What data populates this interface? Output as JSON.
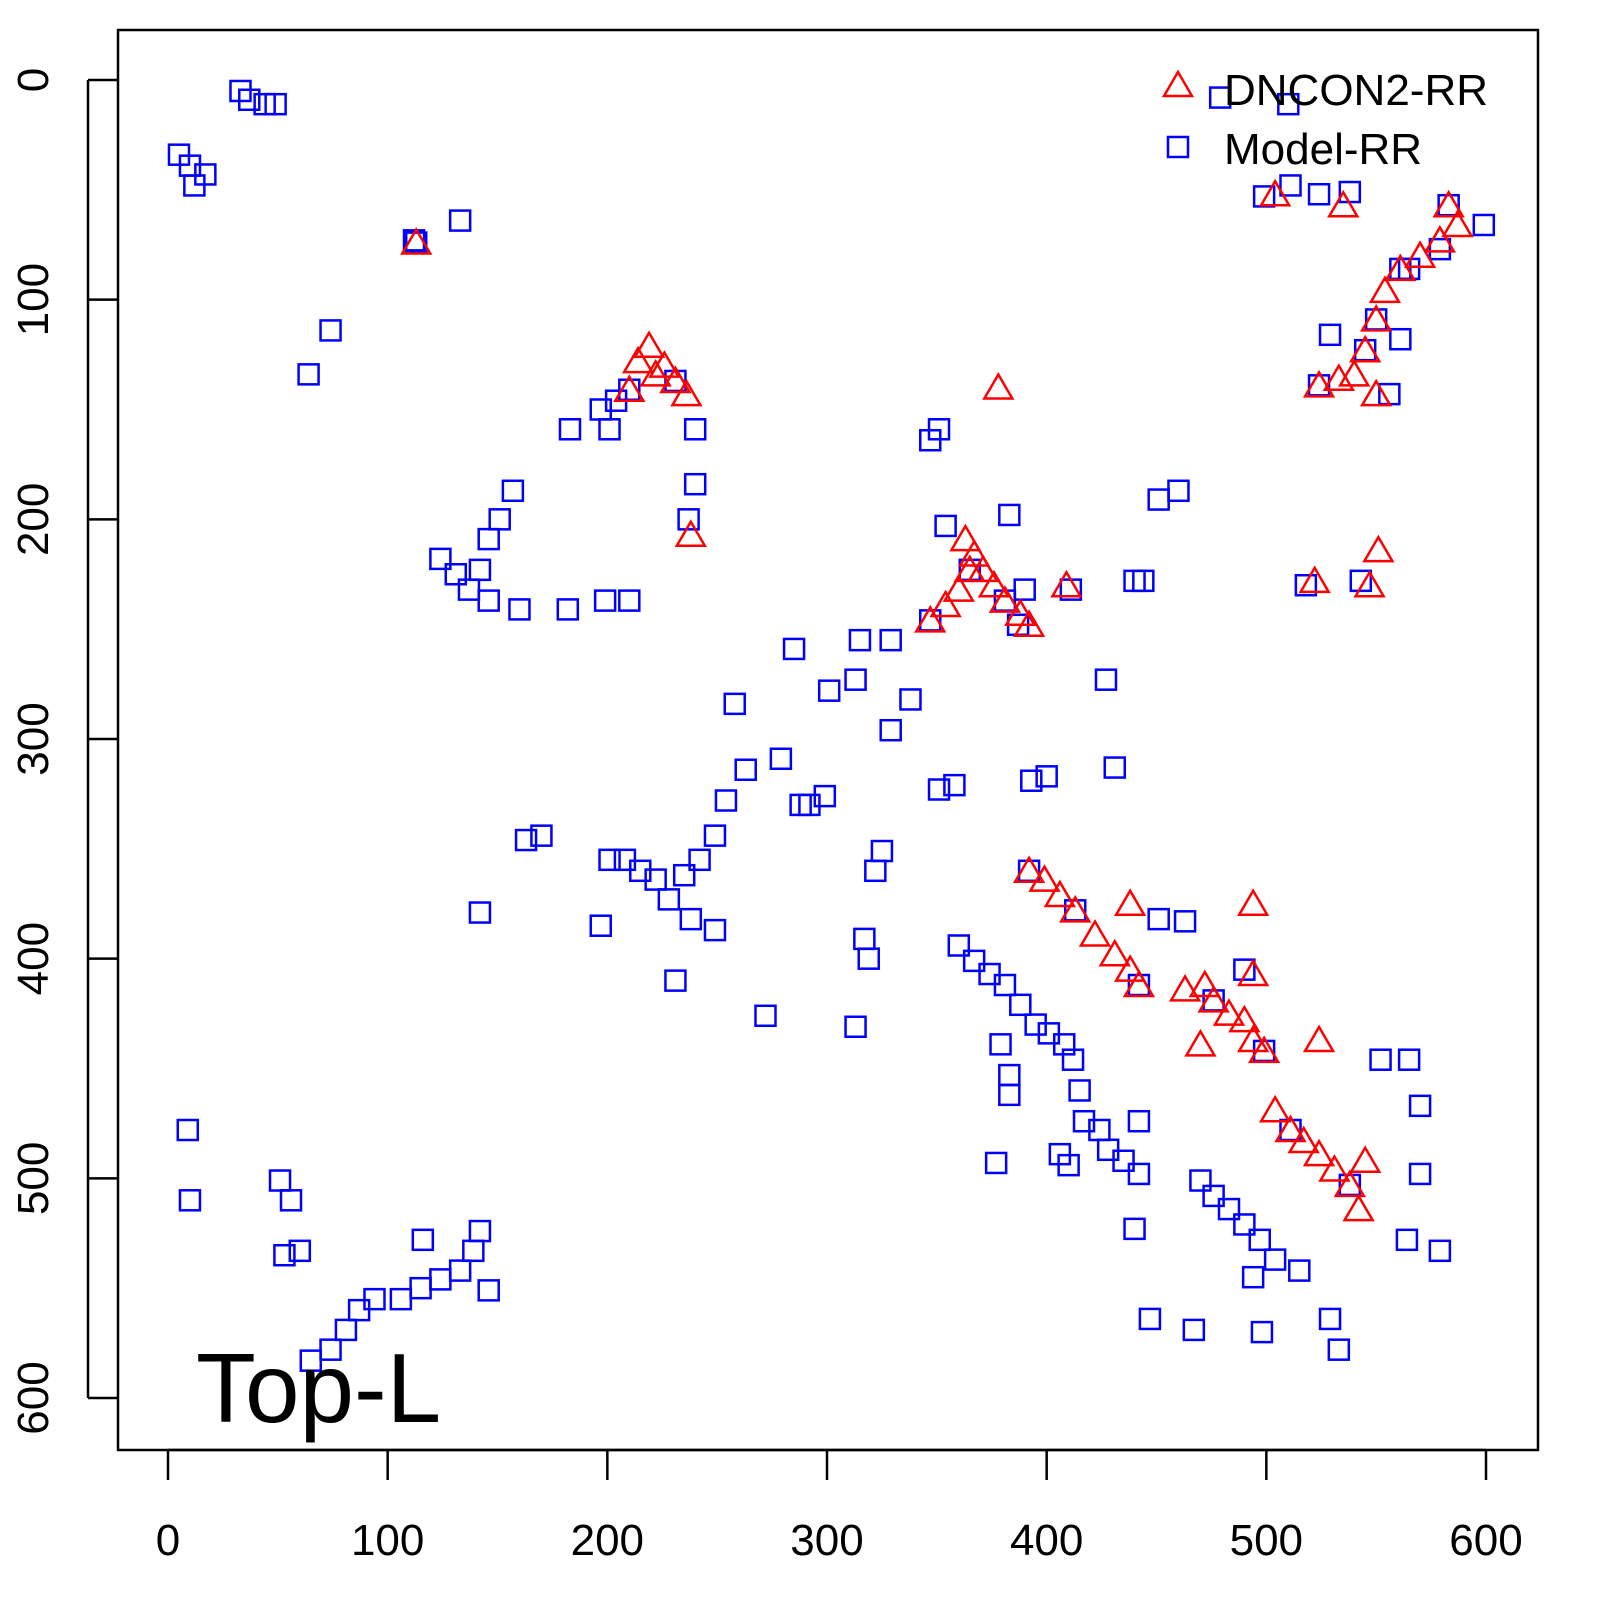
{
  "chart_data": {
    "type": "scatter",
    "title": "",
    "xlabel": "",
    "ylabel": "",
    "xlim": [
      -23,
      623
    ],
    "ylim": [
      -23,
      623
    ],
    "y_reversed": true,
    "grid": false,
    "x_ticks": [
      0,
      100,
      200,
      300,
      400,
      500,
      600
    ],
    "y_ticks": [
      0,
      100,
      200,
      300,
      400,
      500,
      600
    ],
    "annotation": "Top-L",
    "legend": {
      "placement": "top-right",
      "entries": [
        "DNCON2-RR",
        "Model-RR"
      ]
    },
    "series": [
      {
        "name": "DNCON2-RR",
        "marker": "triangle",
        "color": "#ff0000",
        "points": [
          [
            113,
            74
          ],
          [
            210,
            141
          ],
          [
            214,
            128
          ],
          [
            219,
            121
          ],
          [
            226,
            130
          ],
          [
            231,
            137
          ],
          [
            236,
            143
          ],
          [
            222,
            134
          ],
          [
            238,
            207
          ],
          [
            347,
            246
          ],
          [
            354,
            239
          ],
          [
            360,
            232
          ],
          [
            365,
            223
          ],
          [
            363,
            209
          ],
          [
            367,
            216
          ],
          [
            371,
            223
          ],
          [
            376,
            230
          ],
          [
            381,
            237
          ],
          [
            388,
            243
          ],
          [
            392,
            248
          ],
          [
            378,
            140
          ],
          [
            409,
            230
          ],
          [
            392,
            360
          ],
          [
            399,
            364
          ],
          [
            406,
            371
          ],
          [
            413,
            378
          ],
          [
            422,
            389
          ],
          [
            431,
            398
          ],
          [
            438,
            405
          ],
          [
            442,
            412
          ],
          [
            438,
            375
          ],
          [
            463,
            414
          ],
          [
            472,
            412
          ],
          [
            476,
            419
          ],
          [
            483,
            425
          ],
          [
            490,
            428
          ],
          [
            494,
            437
          ],
          [
            499,
            442
          ],
          [
            470,
            439
          ],
          [
            494,
            375
          ],
          [
            494,
            407
          ],
          [
            524,
            437
          ],
          [
            504,
            469
          ],
          [
            511,
            478
          ],
          [
            517,
            483
          ],
          [
            524,
            489
          ],
          [
            531,
            496
          ],
          [
            538,
            503
          ],
          [
            542,
            514
          ],
          [
            545,
            492
          ],
          [
            504,
            52
          ],
          [
            535,
            57
          ],
          [
            583,
            57
          ],
          [
            587,
            66
          ],
          [
            579,
            73
          ],
          [
            570,
            80
          ],
          [
            561,
            86
          ],
          [
            554,
            96
          ],
          [
            550,
            109
          ],
          [
            545,
            123
          ],
          [
            540,
            134
          ],
          [
            533,
            136
          ],
          [
            550,
            143
          ],
          [
            524,
            139
          ],
          [
            551,
            214
          ],
          [
            522,
            228
          ],
          [
            547,
            230
          ]
        ]
      },
      {
        "name": "Model-RR",
        "marker": "square",
        "color": "#0000ff",
        "points": [
          [
            33,
            5
          ],
          [
            37,
            9
          ],
          [
            44,
            11
          ],
          [
            49,
            11
          ],
          [
            5,
            34
          ],
          [
            10,
            39
          ],
          [
            12,
            48
          ],
          [
            17,
            43
          ],
          [
            112,
            73
          ],
          [
            133,
            64
          ],
          [
            74,
            114
          ],
          [
            64,
            134
          ],
          [
            9,
            478
          ],
          [
            10,
            510
          ],
          [
            51,
            501
          ],
          [
            56,
            510
          ],
          [
            53,
            535
          ],
          [
            60,
            533
          ],
          [
            65,
            583
          ],
          [
            74,
            578
          ],
          [
            81,
            569
          ],
          [
            87,
            560
          ],
          [
            94,
            555
          ],
          [
            106,
            555
          ],
          [
            115,
            550
          ],
          [
            124,
            546
          ],
          [
            133,
            542
          ],
          [
            139,
            533
          ],
          [
            142,
            524
          ],
          [
            146,
            551
          ],
          [
            116,
            528
          ],
          [
            183,
            159
          ],
          [
            197,
            150
          ],
          [
            201,
            159
          ],
          [
            204,
            146
          ],
          [
            240,
            159
          ],
          [
            240,
            184
          ],
          [
            237,
            200
          ],
          [
            124,
            218
          ],
          [
            131,
            225
          ],
          [
            137,
            232
          ],
          [
            142,
            223
          ],
          [
            146,
            237
          ],
          [
            146,
            209
          ],
          [
            151,
            200
          ],
          [
            157,
            187
          ],
          [
            160,
            241
          ],
          [
            182,
            241
          ],
          [
            199,
            237
          ],
          [
            210,
            237
          ],
          [
            285,
            259
          ],
          [
            258,
            284
          ],
          [
            301,
            278
          ],
          [
            313,
            273
          ],
          [
            315,
            255
          ],
          [
            329,
            255
          ],
          [
            338,
            282
          ],
          [
            329,
            296
          ],
          [
            279,
            309
          ],
          [
            263,
            314
          ],
          [
            254,
            328
          ],
          [
            249,
            344
          ],
          [
            242,
            355
          ],
          [
            235,
            362
          ],
          [
            228,
            373
          ],
          [
            222,
            364
          ],
          [
            215,
            360
          ],
          [
            208,
            355
          ],
          [
            201,
            355
          ],
          [
            197,
            385
          ],
          [
            238,
            382
          ],
          [
            249,
            387
          ],
          [
            231,
            410
          ],
          [
            288,
            330
          ],
          [
            299,
            326
          ],
          [
            292,
            330
          ],
          [
            163,
            346
          ],
          [
            170,
            344
          ],
          [
            142,
            379
          ],
          [
            347,
            164
          ],
          [
            351,
            159
          ],
          [
            460,
            187
          ],
          [
            451,
            191
          ],
          [
            383,
            198
          ],
          [
            354,
            203
          ],
          [
            325,
            351
          ],
          [
            322,
            360
          ],
          [
            317,
            391
          ],
          [
            319,
            400
          ],
          [
            313,
            431
          ],
          [
            272,
            426
          ],
          [
            351,
            323
          ],
          [
            358,
            321
          ],
          [
            393,
            319
          ],
          [
            400,
            317
          ],
          [
            427,
            273
          ],
          [
            431,
            313
          ],
          [
            360,
            394
          ],
          [
            367,
            401
          ],
          [
            374,
            407
          ],
          [
            381,
            412
          ],
          [
            388,
            421
          ],
          [
            395,
            430
          ],
          [
            401,
            434
          ],
          [
            408,
            439
          ],
          [
            412,
            446
          ],
          [
            415,
            460
          ],
          [
            417,
            474
          ],
          [
            424,
            478
          ],
          [
            428,
            487
          ],
          [
            435,
            492
          ],
          [
            442,
            498
          ],
          [
            442,
            474
          ],
          [
            440,
            523
          ],
          [
            379,
            439
          ],
          [
            383,
            453
          ],
          [
            383,
            462
          ],
          [
            377,
            493
          ],
          [
            406,
            489
          ],
          [
            410,
            494
          ],
          [
            470,
            501
          ],
          [
            476,
            508
          ],
          [
            483,
            514
          ],
          [
            490,
            521
          ],
          [
            497,
            528
          ],
          [
            504,
            537
          ],
          [
            515,
            542
          ],
          [
            494,
            545
          ],
          [
            447,
            564
          ],
          [
            467,
            569
          ],
          [
            498,
            570
          ],
          [
            529,
            564
          ],
          [
            533,
            578
          ],
          [
            451,
            382
          ],
          [
            463,
            383
          ],
          [
            490,
            405
          ],
          [
            552,
            446
          ],
          [
            565,
            446
          ],
          [
            570,
            467
          ],
          [
            570,
            498
          ],
          [
            564,
            528
          ],
          [
            579,
            533
          ],
          [
            479,
            8
          ],
          [
            510,
            11
          ],
          [
            499,
            53
          ],
          [
            511,
            48
          ],
          [
            524,
            52
          ],
          [
            538,
            51
          ],
          [
            599,
            66
          ],
          [
            529,
            116
          ],
          [
            524,
            139
          ],
          [
            556,
            143
          ],
          [
            561,
            118
          ],
          [
            550,
            109
          ],
          [
            565,
            86
          ],
          [
            579,
            77
          ],
          [
            440,
            228
          ],
          [
            444,
            228
          ],
          [
            518,
            230
          ],
          [
            543,
            228
          ],
          [
            411,
            232
          ],
          [
            390,
            232
          ],
          [
            387,
            248
          ],
          [
            347,
            246
          ],
          [
            365,
            223
          ],
          [
            381,
            237
          ],
          [
            392,
            360
          ],
          [
            413,
            378
          ],
          [
            442,
            412
          ],
          [
            476,
            419
          ],
          [
            499,
            442
          ],
          [
            511,
            478
          ],
          [
            538,
            503
          ],
          [
            583,
            57
          ],
          [
            561,
            86
          ],
          [
            545,
            123
          ],
          [
            210,
            141
          ],
          [
            231,
            137
          ],
          [
            113,
            74
          ]
        ]
      }
    ]
  }
}
